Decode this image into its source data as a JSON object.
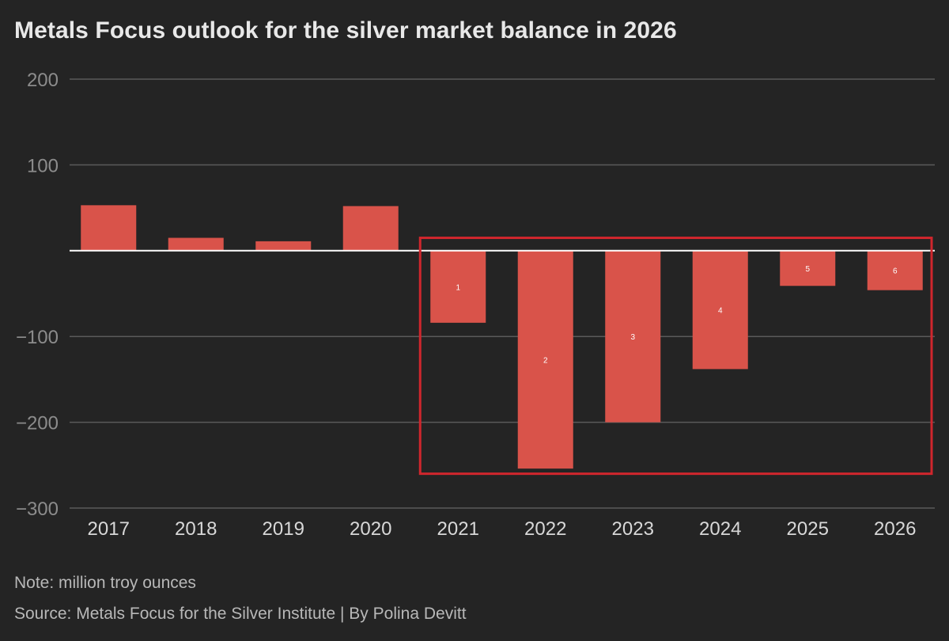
{
  "header": {
    "title": "Metals Focus outlook for the silver market balance in 2026"
  },
  "footer": {
    "note": "Note: million troy ounces",
    "source": "Source: Metals Focus for the Silver Institute | By Polina Devitt"
  },
  "chart_data": {
    "type": "bar",
    "title": "Metals Focus outlook for the silver market balance in 2026",
    "xlabel": "",
    "ylabel": "",
    "categories": [
      "2017",
      "2018",
      "2019",
      "2020",
      "2021",
      "2022",
      "2023",
      "2024",
      "2025",
      "2026"
    ],
    "values": [
      53,
      15,
      11,
      52,
      -84,
      -254,
      -200,
      -138,
      -41,
      -46
    ],
    "bar_labels": [
      "",
      "",
      "",
      "",
      "1",
      "2",
      "3",
      "4",
      "5",
      "6"
    ],
    "ylim": [
      -300,
      200
    ],
    "yticks": [
      200,
      100,
      0,
      -100,
      -200,
      -300
    ],
    "ytick_labels": [
      "200",
      "100",
      "",
      "−100",
      "−200",
      "−300"
    ],
    "grid": true,
    "legend": "none",
    "highlight_box": {
      "from_category": "2021",
      "to_category": "2026",
      "y_top": 15,
      "y_bottom": -260
    },
    "colors": {
      "bar": "#d9534a",
      "zero_line": "#ffffff",
      "grid": "#5a5a5a",
      "highlight": "#d0262d",
      "background": "#242424"
    }
  }
}
